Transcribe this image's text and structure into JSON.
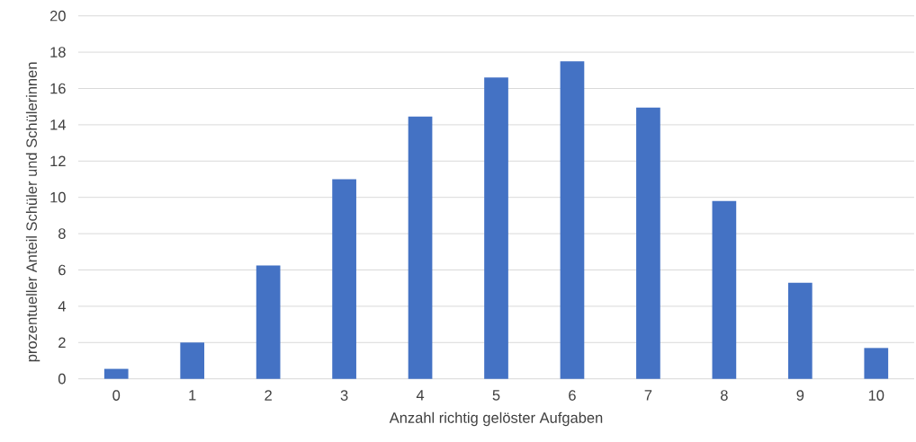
{
  "chart_data": {
    "type": "bar",
    "xlabel": "Anzahl richtig gelöster Aufgaben",
    "ylabel": "prozentueller Anteil Schüler und Schülerinnen",
    "categories": [
      "0",
      "1",
      "2",
      "3",
      "4",
      "5",
      "6",
      "7",
      "8",
      "9",
      "10"
    ],
    "values": [
      0.55,
      2.0,
      6.25,
      11.0,
      14.45,
      16.6,
      17.5,
      14.95,
      9.8,
      5.3,
      1.7
    ],
    "color": "#4472c4",
    "ylim": [
      0,
      20
    ],
    "yticks": [
      0,
      2,
      4,
      6,
      8,
      10,
      12,
      14,
      16,
      18,
      20
    ],
    "grid": "y"
  }
}
